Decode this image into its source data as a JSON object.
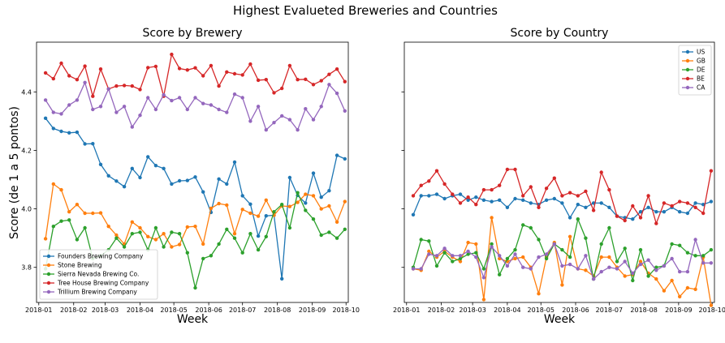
{
  "figure_title": "Highest Evalueted Breweries and Countries",
  "ylabel": "Score (de 1 a 5 pontos)",
  "chart_data": [
    {
      "type": "line",
      "title": "Score by Brewery",
      "xlabel": "Week",
      "x_ticks": [
        "2018-01",
        "2018-02",
        "2018-03",
        "2018-04",
        "2018-05",
        "2018-06",
        "2018-07",
        "2018-08",
        "2018-09",
        "2018-10"
      ],
      "y_ticks": [
        "3.8",
        "4.0",
        "4.2",
        "4.4"
      ],
      "ylim": [
        3.68,
        4.57
      ],
      "legend_position": "lower-left",
      "x": [
        "2018-01-07",
        "2018-01-14",
        "2018-01-21",
        "2018-01-28",
        "2018-02-04",
        "2018-02-11",
        "2018-02-18",
        "2018-02-25",
        "2018-03-04",
        "2018-03-11",
        "2018-03-18",
        "2018-03-25",
        "2018-04-01",
        "2018-04-08",
        "2018-04-15",
        "2018-04-22",
        "2018-04-29",
        "2018-05-06",
        "2018-05-13",
        "2018-05-20",
        "2018-05-27",
        "2018-06-03",
        "2018-06-10",
        "2018-06-17",
        "2018-06-24",
        "2018-07-01",
        "2018-07-08",
        "2018-07-15",
        "2018-07-22",
        "2018-07-29",
        "2018-08-05",
        "2018-08-12",
        "2018-08-19",
        "2018-08-26",
        "2018-09-02",
        "2018-09-09",
        "2018-09-16",
        "2018-09-23",
        "2018-09-30"
      ],
      "series": [
        {
          "name": "Founders Brewing Company",
          "color": "#1f77b4",
          "values": [
            4.31,
            4.275,
            4.265,
            4.26,
            4.262,
            4.222,
            4.223,
            4.152,
            4.113,
            4.095,
            4.076,
            4.138,
            4.107,
            4.178,
            4.148,
            4.138,
            4.085,
            4.096,
            4.097,
            4.109,
            4.058,
            3.988,
            4.102,
            4.085,
            4.16,
            4.045,
            4.016,
            3.907,
            3.976,
            3.978,
            3.761,
            4.107,
            4.046,
            4.02,
            4.122,
            4.04,
            4.062,
            4.183,
            4.171
          ]
        },
        {
          "name": "Stone Brewing",
          "color": "#ff7f0e",
          "values": [
            3.898,
            4.085,
            4.065,
            3.99,
            4.015,
            3.985,
            3.985,
            3.986,
            3.94,
            3.91,
            3.88,
            3.955,
            3.935,
            3.905,
            3.895,
            3.915,
            3.87,
            3.878,
            3.938,
            3.94,
            3.88,
            4.002,
            4.018,
            4.013,
            3.915,
            3.998,
            3.985,
            3.975,
            4.03,
            3.978,
            4.01,
            4.008,
            4.022,
            4.05,
            4.045,
            4.0,
            4.01,
            3.955,
            4.025
          ]
        },
        {
          "name": "Sierra Nevada Brewing Co.",
          "color": "#2ca02c",
          "values": [
            3.795,
            3.94,
            3.958,
            3.962,
            3.895,
            3.935,
            3.83,
            3.84,
            3.86,
            3.9,
            3.87,
            3.915,
            3.92,
            3.86,
            3.935,
            3.87,
            3.92,
            3.915,
            3.85,
            3.73,
            3.83,
            3.84,
            3.88,
            3.93,
            3.9,
            3.85,
            3.915,
            3.86,
            3.905,
            3.99,
            4.015,
            3.935,
            4.055,
            3.995,
            3.965,
            3.91,
            3.92,
            3.9,
            3.93
          ]
        },
        {
          "name": "Tree House Brewing Company",
          "color": "#d62728",
          "values": [
            4.465,
            4.445,
            4.498,
            4.455,
            4.442,
            4.488,
            4.385,
            4.478,
            4.41,
            4.42,
            4.422,
            4.42,
            4.408,
            4.483,
            4.487,
            4.385,
            4.528,
            4.48,
            4.475,
            4.482,
            4.455,
            4.49,
            4.42,
            4.468,
            4.462,
            4.458,
            4.495,
            4.44,
            4.442,
            4.397,
            4.412,
            4.49,
            4.442,
            4.443,
            4.425,
            4.438,
            4.46,
            4.478,
            4.435
          ]
        },
        {
          "name": "Trillium Brewing Company",
          "color": "#9467bd",
          "values": [
            4.372,
            4.33,
            4.325,
            4.355,
            4.372,
            4.432,
            4.34,
            4.35,
            4.41,
            4.33,
            4.35,
            4.28,
            4.32,
            4.38,
            4.34,
            4.39,
            4.37,
            4.38,
            4.34,
            4.38,
            4.36,
            4.355,
            4.34,
            4.33,
            4.392,
            4.38,
            4.3,
            4.35,
            4.27,
            4.295,
            4.318,
            4.305,
            4.27,
            4.342,
            4.305,
            4.35,
            4.425,
            4.395,
            4.335
          ]
        }
      ]
    },
    {
      "type": "line",
      "title": "Score by Country",
      "xlabel": "Week",
      "x_ticks": [
        "2018-01",
        "2018-02",
        "2018-03",
        "2018-04",
        "2018-05",
        "2018-06",
        "2018-07",
        "2018-08",
        "2018-09",
        "2018-10"
      ],
      "ylim": [
        3.68,
        4.57
      ],
      "legend_position": "upper-right",
      "x": [
        "2018-01-07",
        "2018-01-14",
        "2018-01-21",
        "2018-01-28",
        "2018-02-04",
        "2018-02-11",
        "2018-02-18",
        "2018-02-25",
        "2018-03-04",
        "2018-03-11",
        "2018-03-18",
        "2018-03-25",
        "2018-04-01",
        "2018-04-08",
        "2018-04-15",
        "2018-04-22",
        "2018-04-29",
        "2018-05-06",
        "2018-05-13",
        "2018-05-20",
        "2018-05-27",
        "2018-06-03",
        "2018-06-10",
        "2018-06-17",
        "2018-06-24",
        "2018-07-01",
        "2018-07-08",
        "2018-07-15",
        "2018-07-22",
        "2018-07-29",
        "2018-08-05",
        "2018-08-12",
        "2018-08-19",
        "2018-08-26",
        "2018-09-02",
        "2018-09-09",
        "2018-09-16",
        "2018-09-23",
        "2018-09-30"
      ],
      "series": [
        {
          "name": "US",
          "color": "#1f77b4",
          "values": [
            3.98,
            4.045,
            4.045,
            4.05,
            4.035,
            4.045,
            4.05,
            4.03,
            4.04,
            4.03,
            4.025,
            4.03,
            4.005,
            4.035,
            4.03,
            4.02,
            4.015,
            4.03,
            4.035,
            4.02,
            3.97,
            4.015,
            4.005,
            4.02,
            4.02,
            4.005,
            3.975,
            3.97,
            3.965,
            3.99,
            4.005,
            3.99,
            3.99,
            4.005,
            3.99,
            3.985,
            4.02,
            4.015,
            4.025
          ]
        },
        {
          "name": "GB",
          "color": "#ff7f0e",
          "values": [
            3.795,
            3.79,
            3.855,
            3.835,
            3.855,
            3.835,
            3.82,
            3.885,
            3.88,
            3.69,
            3.97,
            3.83,
            3.82,
            3.83,
            3.835,
            3.8,
            3.71,
            3.835,
            3.885,
            3.74,
            3.905,
            3.795,
            3.79,
            3.77,
            3.835,
            3.835,
            3.8,
            3.77,
            3.775,
            3.82,
            3.78,
            3.76,
            3.72,
            3.755,
            3.7,
            3.73,
            3.725,
            3.835,
            3.67
          ]
        },
        {
          "name": "DE",
          "color": "#2ca02c",
          "values": [
            3.8,
            3.895,
            3.89,
            3.805,
            3.85,
            3.82,
            3.83,
            3.845,
            3.85,
            3.795,
            3.88,
            3.775,
            3.83,
            3.86,
            3.945,
            3.935,
            3.895,
            3.83,
            3.88,
            3.86,
            3.835,
            3.965,
            3.9,
            3.76,
            3.88,
            3.935,
            3.82,
            3.865,
            3.755,
            3.86,
            3.77,
            3.8,
            3.805,
            3.88,
            3.875,
            3.85,
            3.84,
            3.84,
            3.86
          ]
        },
        {
          "name": "BE",
          "color": "#d62728",
          "values": [
            4.045,
            4.08,
            4.095,
            4.13,
            4.085,
            4.05,
            4.02,
            4.04,
            4.015,
            4.065,
            4.065,
            4.08,
            4.135,
            4.135,
            4.045,
            4.075,
            4.005,
            4.07,
            4.105,
            4.045,
            4.055,
            4.045,
            4.06,
            3.995,
            4.125,
            4.065,
            3.975,
            3.96,
            4.01,
            3.97,
            4.045,
            3.95,
            4.02,
            4.01,
            4.025,
            4.02,
            4.005,
            3.985,
            4.13
          ]
        },
        {
          "name": "CA",
          "color": "#9467bd",
          "values": [
            3.795,
            3.795,
            3.845,
            3.84,
            3.865,
            3.84,
            3.84,
            3.855,
            3.835,
            3.765,
            3.87,
            3.84,
            3.805,
            3.845,
            3.8,
            3.795,
            3.835,
            3.845,
            3.88,
            3.805,
            3.81,
            3.795,
            3.84,
            3.76,
            3.785,
            3.8,
            3.795,
            3.82,
            3.78,
            3.81,
            3.825,
            3.79,
            3.805,
            3.83,
            3.785,
            3.785,
            3.895,
            3.815,
            3.815
          ]
        }
      ]
    }
  ]
}
